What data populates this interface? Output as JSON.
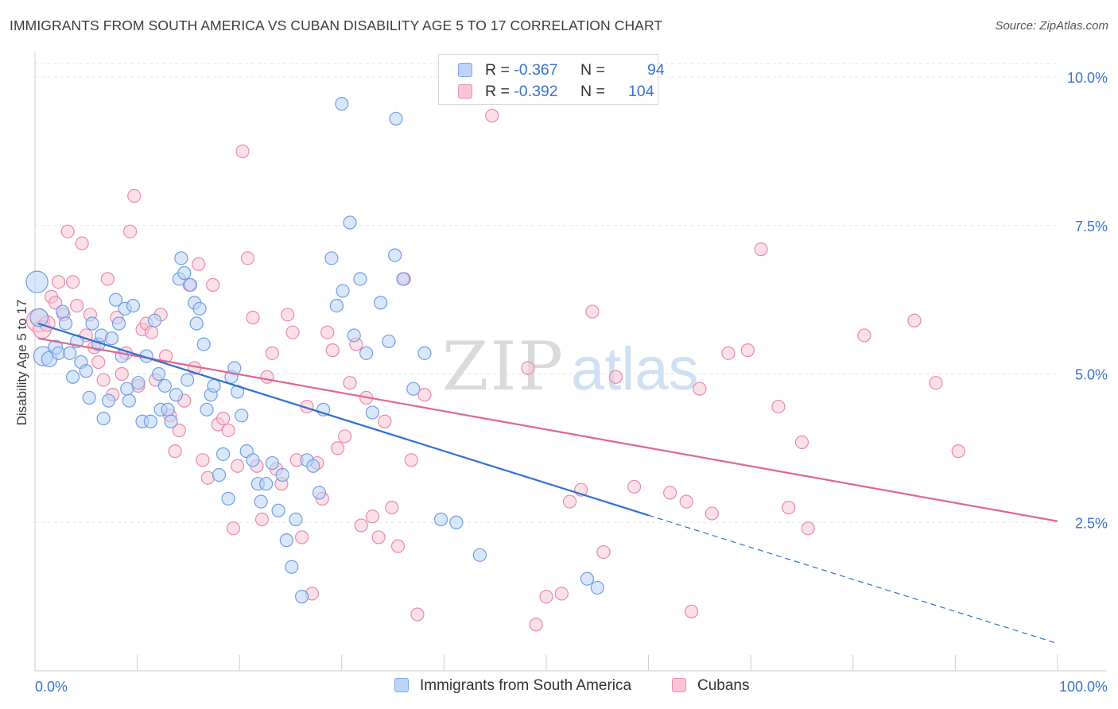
{
  "header": {
    "title": "IMMIGRANTS FROM SOUTH AMERICA VS CUBAN DISABILITY AGE 5 TO 17 CORRELATION CHART",
    "source": "Source: ZipAtlas.com"
  },
  "legend": {
    "series1": {
      "r_label": "R = ",
      "r_value": "-0.367",
      "n_label": "N = ",
      "n_value": "94"
    },
    "series2": {
      "r_label": "R = ",
      "r_value": "-0.392",
      "n_label": "N = ",
      "n_value": "104"
    }
  },
  "watermark": {
    "zip": "ZIP",
    "atlas": "atlas"
  },
  "colors": {
    "blue_fill": "#bcd4f7",
    "blue_stroke": "#6f9ee3",
    "blue_line": "#2f6fd1",
    "pink_fill": "#f9c6d6",
    "pink_stroke": "#e88aa8",
    "pink_line": "#e0668f",
    "tick_label": "#3a72d8",
    "grid": "#e4e4e4"
  },
  "chart_data": {
    "type": "scatter",
    "title": "IMMIGRANTS FROM SOUTH AMERICA VS CUBAN DISABILITY AGE 5 TO 17 CORRELATION CHART",
    "xlabel": "",
    "ylabel": "Disability Age 5 to 17",
    "xlim": [
      0,
      100
    ],
    "ylim": [
      0,
      10.25
    ],
    "x_tick_labels": [
      "0.0%",
      "100.0%"
    ],
    "y_ticks": [
      2.5,
      5.0,
      7.5,
      10.0
    ],
    "y_tick_labels": [
      "2.5%",
      "5.0%",
      "7.5%",
      "10.0%"
    ],
    "grid": true,
    "legend_position": "bottom",
    "series": [
      {
        "name": "Immigrants from South America",
        "color": "blue",
        "r": -0.367,
        "n": 94,
        "trend": {
          "x0": 0.3,
          "y0": 5.85,
          "x1": 60,
          "y1": 2.62,
          "dashed_to_x": 100,
          "dashed_to_y": 0.46
        },
        "points": [
          [
            0.2,
            6.55,
            1.7
          ],
          [
            0.4,
            5.95,
            1.4
          ],
          [
            0.8,
            5.3,
            1.5
          ],
          [
            1.4,
            5.25,
            1.2
          ],
          [
            2,
            5.45,
            1.1
          ],
          [
            2.3,
            5.35,
            1
          ],
          [
            2.7,
            6.05,
            1
          ],
          [
            3,
            5.85,
            1
          ],
          [
            3.4,
            5.35,
            1
          ],
          [
            3.7,
            4.95,
            1
          ],
          [
            4.1,
            5.55,
            1
          ],
          [
            4.5,
            5.2,
            1
          ],
          [
            5,
            5.05,
            1
          ],
          [
            5.3,
            4.6,
            1
          ],
          [
            5.6,
            5.85,
            1
          ],
          [
            6.2,
            5.5,
            1
          ],
          [
            6.5,
            5.65,
            1
          ],
          [
            6.7,
            4.25,
            1
          ],
          [
            7.2,
            4.55,
            1
          ],
          [
            7.5,
            5.6,
            1
          ],
          [
            7.9,
            6.25,
            1
          ],
          [
            8.2,
            5.85,
            1
          ],
          [
            8.5,
            5.3,
            1
          ],
          [
            8.8,
            6.1,
            1
          ],
          [
            9,
            4.75,
            1
          ],
          [
            9.2,
            4.55,
            1
          ],
          [
            9.6,
            6.15,
            1
          ],
          [
            10.1,
            4.85,
            1
          ],
          [
            10.5,
            4.2,
            1
          ],
          [
            10.9,
            5.3,
            1
          ],
          [
            11.3,
            4.2,
            1
          ],
          [
            11.7,
            5.9,
            1
          ],
          [
            12.1,
            5.0,
            1
          ],
          [
            12.3,
            4.4,
            1
          ],
          [
            12.7,
            4.8,
            1
          ],
          [
            13,
            4.4,
            1
          ],
          [
            13.3,
            4.2,
            1
          ],
          [
            13.8,
            4.65,
            1
          ],
          [
            14.1,
            6.6,
            1
          ],
          [
            14.3,
            6.95,
            1
          ],
          [
            14.6,
            6.7,
            1
          ],
          [
            14.9,
            4.9,
            1
          ],
          [
            15.2,
            6.5,
            1
          ],
          [
            15.6,
            6.2,
            1
          ],
          [
            15.8,
            5.85,
            1
          ],
          [
            16.1,
            6.1,
            1
          ],
          [
            16.5,
            5.5,
            1
          ],
          [
            16.8,
            4.4,
            1
          ],
          [
            17.2,
            4.65,
            1
          ],
          [
            17.5,
            4.8,
            1
          ],
          [
            18,
            3.3,
            1
          ],
          [
            18.4,
            3.65,
            1
          ],
          [
            18.9,
            2.9,
            1
          ],
          [
            19.2,
            4.95,
            1
          ],
          [
            19.5,
            5.1,
            1
          ],
          [
            19.8,
            4.7,
            1
          ],
          [
            20.2,
            4.3,
            1
          ],
          [
            20.7,
            3.7,
            1
          ],
          [
            21.3,
            3.55,
            1
          ],
          [
            21.8,
            3.15,
            1
          ],
          [
            22.1,
            2.85,
            1
          ],
          [
            22.6,
            3.15,
            1
          ],
          [
            23.2,
            3.5,
            1
          ],
          [
            23.8,
            2.7,
            1
          ],
          [
            24.2,
            3.3,
            1
          ],
          [
            24.6,
            2.2,
            1
          ],
          [
            25.1,
            1.75,
            1
          ],
          [
            25.5,
            2.55,
            1
          ],
          [
            26.1,
            1.25,
            1
          ],
          [
            26.6,
            3.55,
            1
          ],
          [
            27.2,
            3.45,
            1
          ],
          [
            27.8,
            3.0,
            1
          ],
          [
            28.2,
            4.4,
            1
          ],
          [
            29,
            6.95,
            1
          ],
          [
            29.5,
            6.15,
            1
          ],
          [
            30.1,
            6.4,
            1
          ],
          [
            30.8,
            7.55,
            1
          ],
          [
            31.2,
            5.65,
            1
          ],
          [
            31.8,
            6.6,
            1
          ],
          [
            32.4,
            5.35,
            1
          ],
          [
            33,
            4.35,
            1
          ],
          [
            33.8,
            6.2,
            1
          ],
          [
            34.6,
            5.55,
            1
          ],
          [
            35.2,
            7.0,
            1
          ],
          [
            36,
            6.6,
            1
          ],
          [
            37,
            4.75,
            1
          ],
          [
            38.1,
            5.35,
            1
          ],
          [
            39.7,
            2.55,
            1
          ],
          [
            41.2,
            2.5,
            1
          ],
          [
            43.5,
            1.95,
            1
          ],
          [
            30,
            9.55,
            1
          ],
          [
            35.3,
            9.3,
            1
          ],
          [
            54,
            1.55,
            1
          ],
          [
            55,
            1.4,
            1
          ]
        ]
      },
      {
        "name": "Cubans",
        "color": "pink",
        "r": -0.392,
        "n": 104,
        "trend": {
          "x0": 0.3,
          "y0": 5.6,
          "x1": 100,
          "y1": 2.52
        },
        "points": [
          [
            0.3,
            5.9,
            1.8
          ],
          [
            0.7,
            5.75,
            1.4
          ],
          [
            1.2,
            5.85,
            1.2
          ],
          [
            1.6,
            6.3,
            1
          ],
          [
            2,
            6.2,
            1
          ],
          [
            2.3,
            6.55,
            1
          ],
          [
            2.8,
            6.0,
            1
          ],
          [
            3.2,
            7.4,
            1
          ],
          [
            3.7,
            6.55,
            1
          ],
          [
            4.1,
            6.15,
            1
          ],
          [
            4.6,
            7.2,
            1
          ],
          [
            5,
            5.65,
            1
          ],
          [
            5.4,
            6.0,
            1
          ],
          [
            5.8,
            5.45,
            1
          ],
          [
            6.2,
            5.2,
            1
          ],
          [
            6.7,
            4.9,
            1
          ],
          [
            7.1,
            6.6,
            1
          ],
          [
            7.6,
            4.65,
            1
          ],
          [
            8,
            5.95,
            1
          ],
          [
            8.5,
            5.0,
            1
          ],
          [
            8.9,
            5.35,
            1
          ],
          [
            9.3,
            7.4,
            1
          ],
          [
            9.7,
            8.0,
            1
          ],
          [
            10.1,
            4.8,
            1
          ],
          [
            10.5,
            5.75,
            1
          ],
          [
            10.9,
            5.85,
            1
          ],
          [
            11.4,
            5.7,
            1
          ],
          [
            11.8,
            4.9,
            1
          ],
          [
            12.3,
            6.0,
            1
          ],
          [
            12.8,
            5.3,
            1
          ],
          [
            13.2,
            4.3,
            1
          ],
          [
            13.7,
            3.7,
            1
          ],
          [
            14.1,
            4.05,
            1
          ],
          [
            14.6,
            4.55,
            1
          ],
          [
            15.1,
            6.5,
            1
          ],
          [
            15.6,
            5.1,
            1
          ],
          [
            16,
            6.85,
            1
          ],
          [
            16.4,
            3.55,
            1
          ],
          [
            16.9,
            3.25,
            1
          ],
          [
            17.4,
            6.5,
            1
          ],
          [
            17.9,
            4.15,
            1
          ],
          [
            18.4,
            4.25,
            1
          ],
          [
            18.9,
            4.05,
            1
          ],
          [
            19.4,
            2.4,
            1
          ],
          [
            19.8,
            3.45,
            1
          ],
          [
            20.3,
            8.75,
            1
          ],
          [
            20.8,
            6.95,
            1
          ],
          [
            21.3,
            5.95,
            1
          ],
          [
            21.7,
            3.45,
            1
          ],
          [
            22.2,
            2.55,
            1
          ],
          [
            22.7,
            4.95,
            1
          ],
          [
            23.2,
            5.35,
            1
          ],
          [
            23.6,
            3.4,
            1
          ],
          [
            24.1,
            3.15,
            1
          ],
          [
            24.7,
            6.0,
            1
          ],
          [
            25.2,
            5.7,
            1
          ],
          [
            25.6,
            3.55,
            1
          ],
          [
            26.1,
            2.25,
            1
          ],
          [
            26.6,
            4.45,
            1
          ],
          [
            27.1,
            1.3,
            1
          ],
          [
            27.6,
            3.5,
            1
          ],
          [
            28.1,
            2.9,
            1
          ],
          [
            28.6,
            5.7,
            1
          ],
          [
            29.1,
            5.4,
            1
          ],
          [
            29.6,
            3.75,
            1
          ],
          [
            30.3,
            3.95,
            1
          ],
          [
            30.8,
            4.85,
            1
          ],
          [
            31.4,
            5.5,
            1
          ],
          [
            31.9,
            2.45,
            1
          ],
          [
            32.4,
            4.6,
            1
          ],
          [
            33,
            2.6,
            1
          ],
          [
            33.6,
            2.25,
            1
          ],
          [
            34.2,
            4.2,
            1
          ],
          [
            34.9,
            2.75,
            1
          ],
          [
            35.5,
            2.1,
            1
          ],
          [
            36.1,
            6.6,
            1
          ],
          [
            36.8,
            3.55,
            1
          ],
          [
            37.4,
            0.95,
            1
          ],
          [
            38.1,
            4.65,
            1
          ],
          [
            44.7,
            9.35,
            1
          ],
          [
            48.2,
            5.1,
            1
          ],
          [
            49,
            0.78,
            1
          ],
          [
            50,
            1.25,
            1
          ],
          [
            51.5,
            1.3,
            1
          ],
          [
            52.3,
            2.85,
            1
          ],
          [
            53.4,
            3.05,
            1
          ],
          [
            54.5,
            6.05,
            1
          ],
          [
            55.6,
            2.0,
            1
          ],
          [
            56.8,
            4.95,
            1
          ],
          [
            58.6,
            3.1,
            1
          ],
          [
            62.1,
            3.0,
            1
          ],
          [
            63.7,
            2.85,
            1
          ],
          [
            64.2,
            1.0,
            1
          ],
          [
            65,
            4.75,
            1
          ],
          [
            66.2,
            2.65,
            1
          ],
          [
            67.8,
            5.35,
            1
          ],
          [
            69.7,
            5.4,
            1
          ],
          [
            71,
            7.1,
            1
          ],
          [
            72.7,
            4.45,
            1
          ],
          [
            73.7,
            2.75,
            1
          ],
          [
            75,
            3.85,
            1
          ],
          [
            75.6,
            2.4,
            1
          ],
          [
            81.1,
            5.65,
            1
          ],
          [
            86,
            5.9,
            1
          ],
          [
            88.1,
            4.85,
            1
          ],
          [
            90.3,
            3.7,
            1
          ]
        ]
      }
    ]
  }
}
